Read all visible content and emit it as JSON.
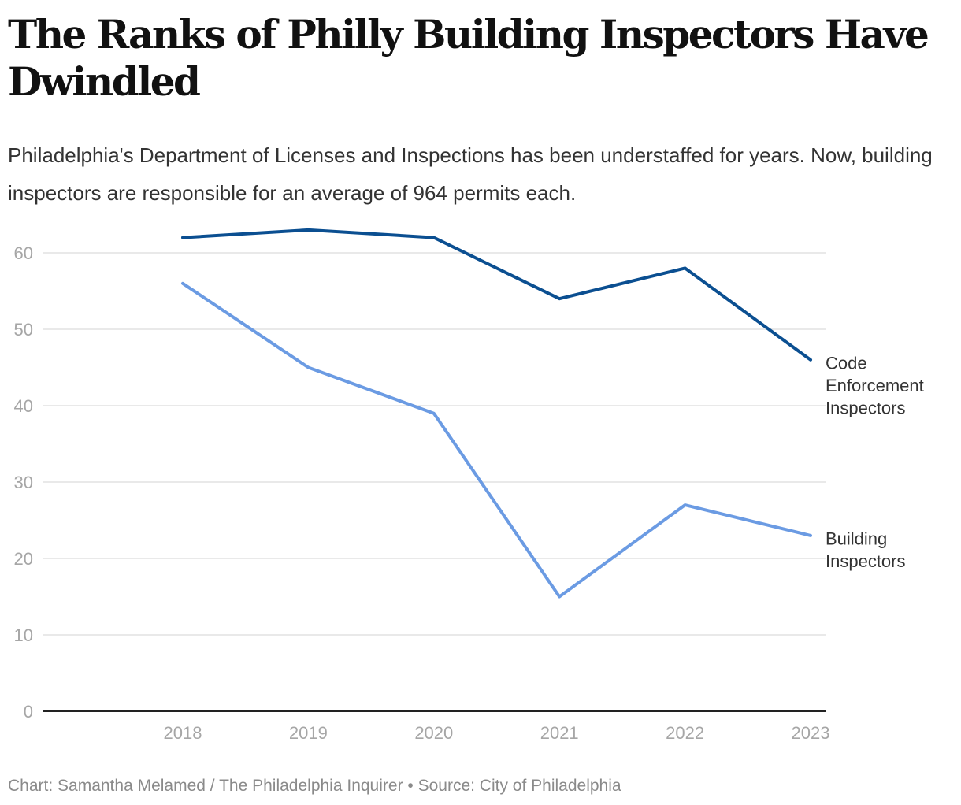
{
  "header": {
    "title": "The Ranks of Philly Building Inspectors Have Dwindled",
    "subtitle": "Philadelphia's Department of Licenses and Inspections has been understaffed for years. Now, building inspectors are responsible for an average of 964 permits each."
  },
  "footer": {
    "credit": "Chart: Samantha Melamed / The Philadelphia Inquirer • Source: City of Philadelphia"
  },
  "colors": {
    "code_enforcement": "#0b4f91",
    "building": "#6b9be3",
    "gridline": "#e2e2e2",
    "axis": "#222222"
  },
  "chart_data": {
    "type": "line",
    "title": "The Ranks of Philly Building Inspectors Have Dwindled",
    "xlabel": "",
    "ylabel": "",
    "categories": [
      "2018",
      "2019",
      "2020",
      "2021",
      "2022",
      "2023"
    ],
    "yticks": [
      0,
      10,
      20,
      30,
      40,
      50,
      60
    ],
    "ylim": [
      0,
      63
    ],
    "grid": true,
    "legend": "direct labels at right end of lines",
    "series": [
      {
        "name": "Code Enforcement Inspectors",
        "label_lines": [
          "Code",
          "Enforcement",
          "Inspectors"
        ],
        "values": [
          62,
          63,
          62,
          54,
          58,
          46
        ]
      },
      {
        "name": "Building Inspectors",
        "label_lines": [
          "Building",
          "Inspectors"
        ],
        "values": [
          56,
          45,
          39,
          15,
          27,
          23
        ]
      }
    ]
  }
}
